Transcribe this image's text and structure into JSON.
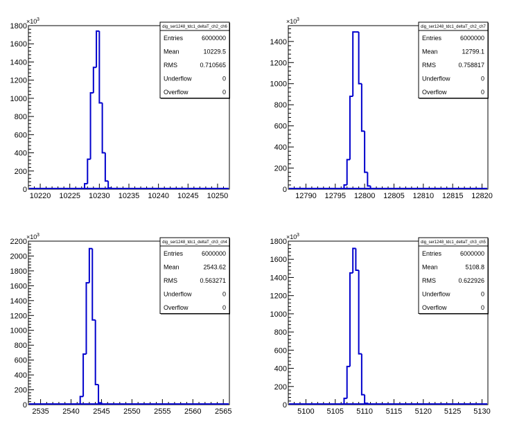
{
  "chart_data": [
    {
      "type": "histogram",
      "title": "dig_ser1248_tdc1_deltaT_ch2_ch6",
      "y_exponent_label": "×10",
      "y_exponent_power": "3",
      "xlim": [
        10218,
        10252
      ],
      "ylim": [
        0,
        1800
      ],
      "xticks": [
        "10220",
        "10225",
        "10230",
        "10235",
        "10240",
        "10245",
        "10250"
      ],
      "xtick_values": [
        10220,
        10225,
        10230,
        10235,
        10240,
        10245,
        10250
      ],
      "yticks": [
        "0",
        "200",
        "400",
        "600",
        "800",
        "1000",
        "1200",
        "1400",
        "1600",
        "1800"
      ],
      "ytick_values": [
        0,
        200,
        400,
        600,
        800,
        1000,
        1200,
        1400,
        1600,
        1800
      ],
      "bins": [
        {
          "x": 10227.5,
          "w": 0.5,
          "y": 60
        },
        {
          "x": 10228.0,
          "w": 0.5,
          "y": 330
        },
        {
          "x": 10228.5,
          "w": 0.5,
          "y": 1060
        },
        {
          "x": 10229.0,
          "w": 0.5,
          "y": 1340
        },
        {
          "x": 10229.5,
          "w": 0.5,
          "y": 1740
        },
        {
          "x": 10230.0,
          "w": 0.5,
          "y": 950
        },
        {
          "x": 10230.5,
          "w": 0.5,
          "y": 400
        },
        {
          "x": 10231.0,
          "w": 0.5,
          "y": 90
        },
        {
          "x": 10231.5,
          "w": 0.5,
          "y": 12
        }
      ],
      "stats": [
        {
          "label": "Entries",
          "value": "6000000"
        },
        {
          "label": "Mean",
          "value": "10229.5"
        },
        {
          "label": "RMS",
          "value": "0.710565"
        },
        {
          "label": "Underflow",
          "value": "0"
        },
        {
          "label": "Overflow",
          "value": "0"
        }
      ],
      "color": "#0000cc"
    },
    {
      "type": "histogram",
      "title": "dig_ser1248_tdc1_deltaT_ch2_ch7",
      "y_exponent_label": "×10",
      "y_exponent_power": "3",
      "xlim": [
        12787,
        12821
      ],
      "ylim": [
        0,
        1550
      ],
      "xticks": [
        "12790",
        "12795",
        "12800",
        "12805",
        "12810",
        "12815",
        "12820"
      ],
      "xtick_values": [
        12790,
        12795,
        12800,
        12805,
        12810,
        12815,
        12820
      ],
      "yticks": [
        "0",
        "200",
        "400",
        "600",
        "800",
        "1000",
        "1200",
        "1400"
      ],
      "ytick_values": [
        0,
        200,
        400,
        600,
        800,
        1000,
        1200,
        1400
      ],
      "bins": [
        {
          "x": 12796.5,
          "w": 0.5,
          "y": 40
        },
        {
          "x": 12797.0,
          "w": 0.5,
          "y": 280
        },
        {
          "x": 12797.5,
          "w": 0.5,
          "y": 880
        },
        {
          "x": 12798.0,
          "w": 0.5,
          "y": 1490
        },
        {
          "x": 12798.5,
          "w": 0.5,
          "y": 1490
        },
        {
          "x": 12799.0,
          "w": 0.5,
          "y": 1000
        },
        {
          "x": 12799.5,
          "w": 0.5,
          "y": 550
        },
        {
          "x": 12800.0,
          "w": 0.5,
          "y": 160
        },
        {
          "x": 12800.5,
          "w": 0.5,
          "y": 30
        },
        {
          "x": 12801.0,
          "w": 0.5,
          "y": 5
        }
      ],
      "stats": [
        {
          "label": "Entries",
          "value": "6000000"
        },
        {
          "label": "Mean",
          "value": "12799.1"
        },
        {
          "label": "RMS",
          "value": "0.758817"
        },
        {
          "label": "Underflow",
          "value": "0"
        },
        {
          "label": "Overflow",
          "value": "0"
        }
      ],
      "color": "#0000cc"
    },
    {
      "type": "histogram",
      "title": "dig_ser1248_tdc1_deltaT_ch3_ch4",
      "y_exponent_label": "×10",
      "y_exponent_power": "3",
      "xlim": [
        2533,
        2566
      ],
      "ylim": [
        0,
        2200
      ],
      "xticks": [
        "2535",
        "2540",
        "2545",
        "2550",
        "2555",
        "2560",
        "2565"
      ],
      "xtick_values": [
        2535,
        2540,
        2545,
        2550,
        2555,
        2560,
        2565
      ],
      "yticks": [
        "0",
        "200",
        "400",
        "600",
        "800",
        "1000",
        "1200",
        "1400",
        "1600",
        "1800",
        "2000",
        "2200"
      ],
      "ytick_values": [
        0,
        200,
        400,
        600,
        800,
        1000,
        1200,
        1400,
        1600,
        1800,
        2000,
        2200
      ],
      "bins": [
        {
          "x": 2541.5,
          "w": 0.5,
          "y": 110
        },
        {
          "x": 2542.0,
          "w": 0.5,
          "y": 680
        },
        {
          "x": 2542.5,
          "w": 0.5,
          "y": 1640
        },
        {
          "x": 2543.0,
          "w": 0.5,
          "y": 2100
        },
        {
          "x": 2543.5,
          "w": 0.5,
          "y": 1140
        },
        {
          "x": 2544.0,
          "w": 0.5,
          "y": 270
        },
        {
          "x": 2544.5,
          "w": 0.5,
          "y": 25
        }
      ],
      "stats": [
        {
          "label": "Entries",
          "value": "6000000"
        },
        {
          "label": "Mean",
          "value": "2543.62"
        },
        {
          "label": "RMS",
          "value": "0.563271"
        },
        {
          "label": "Underflow",
          "value": "0"
        },
        {
          "label": "Overflow",
          "value": "0"
        }
      ],
      "color": "#0000cc"
    },
    {
      "type": "histogram",
      "title": "dig_ser1248_tdc1_deltaT_ch3_ch5",
      "y_exponent_label": "×10",
      "y_exponent_power": "3",
      "xlim": [
        5097,
        5131
      ],
      "ylim": [
        0,
        1800
      ],
      "xticks": [
        "5100",
        "5105",
        "5110",
        "5115",
        "5120",
        "5125",
        "5130"
      ],
      "xtick_values": [
        5100,
        5105,
        5110,
        5115,
        5120,
        5125,
        5130
      ],
      "yticks": [
        "0",
        "200",
        "400",
        "600",
        "800",
        "1000",
        "1200",
        "1400",
        "1600",
        "1800"
      ],
      "ytick_values": [
        0,
        200,
        400,
        600,
        800,
        1000,
        1200,
        1400,
        1600,
        1800
      ],
      "bins": [
        {
          "x": 5106.5,
          "w": 0.5,
          "y": 70
        },
        {
          "x": 5107.0,
          "w": 0.5,
          "y": 420
        },
        {
          "x": 5107.5,
          "w": 0.5,
          "y": 1450
        },
        {
          "x": 5108.0,
          "w": 0.5,
          "y": 1720
        },
        {
          "x": 5108.5,
          "w": 0.5,
          "y": 1480
        },
        {
          "x": 5109.0,
          "w": 0.5,
          "y": 560
        },
        {
          "x": 5109.5,
          "w": 0.5,
          "y": 110
        },
        {
          "x": 5110.0,
          "w": 0.5,
          "y": 15
        }
      ],
      "stats": [
        {
          "label": "Entries",
          "value": "6000000"
        },
        {
          "label": "Mean",
          "value": "5108.8"
        },
        {
          "label": "RMS",
          "value": "0.622926"
        },
        {
          "label": "Underflow",
          "value": "0"
        },
        {
          "label": "Overflow",
          "value": "0"
        }
      ],
      "color": "#0000cc"
    }
  ]
}
